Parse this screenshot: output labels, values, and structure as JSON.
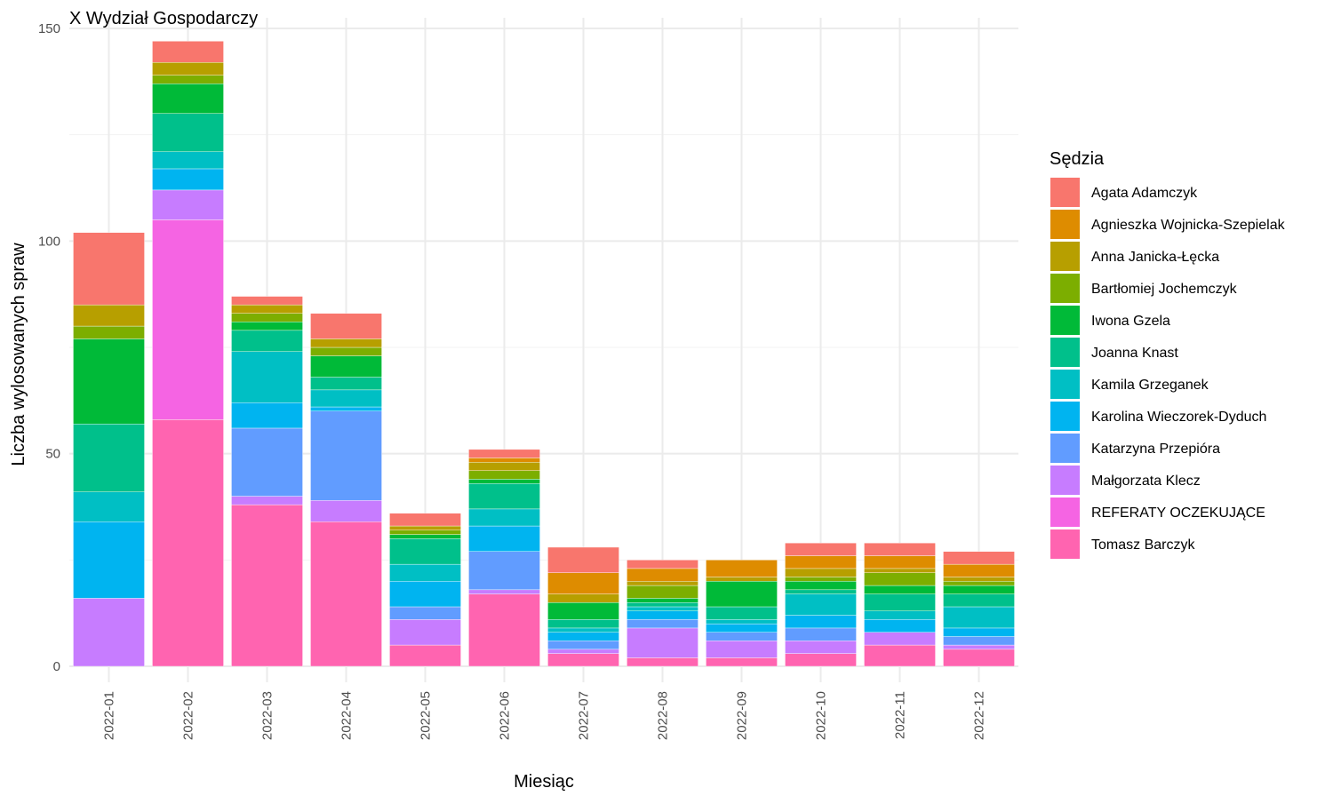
{
  "chart_data": {
    "type": "bar",
    "stacked": true,
    "title": "X Wydział Gospodarczy",
    "xlabel": "Miesiąc",
    "ylabel": "Liczba wylosowanych spraw",
    "ylim": [
      0,
      150
    ],
    "yticks": [
      0,
      50,
      100,
      150
    ],
    "grid": true,
    "legend_title": "Sędzia",
    "legend_position": "right",
    "categories": [
      "2022-01",
      "2022-02",
      "2022-03",
      "2022-04",
      "2022-05",
      "2022-06",
      "2022-07",
      "2022-08",
      "2022-09",
      "2022-10",
      "2022-11",
      "2022-12"
    ],
    "series": [
      {
        "name": "Agata Adamczyk",
        "color": "#F8766D",
        "values": [
          17,
          5,
          2,
          6,
          3,
          2,
          6,
          2,
          0,
          3,
          3,
          3
        ]
      },
      {
        "name": "Agnieszka Wojnicka-Szepielak",
        "color": "#DE8C00",
        "values": [
          0,
          0,
          0,
          0,
          0,
          1,
          5,
          3,
          4,
          3,
          3,
          3
        ]
      },
      {
        "name": "Anna Janicka-Łęcka",
        "color": "#B79F00",
        "values": [
          5,
          3,
          2,
          2,
          1,
          2,
          2,
          1,
          1,
          2,
          1,
          1
        ]
      },
      {
        "name": "Bartłomiej Jochemczyk",
        "color": "#7CAE00",
        "values": [
          3,
          2,
          2,
          2,
          1,
          2,
          0,
          3,
          0,
          1,
          3,
          1
        ]
      },
      {
        "name": "Iwona Gzela",
        "color": "#00BA38",
        "values": [
          20,
          7,
          2,
          5,
          1,
          1,
          4,
          1,
          6,
          2,
          2,
          2
        ]
      },
      {
        "name": "Joanna Knast",
        "color": "#00C08B",
        "values": [
          16,
          9,
          5,
          3,
          6,
          6,
          2,
          1,
          3,
          1,
          4,
          3
        ]
      },
      {
        "name": "Kamila Grzeganek",
        "color": "#00BFC4",
        "values": [
          7,
          4,
          12,
          4,
          4,
          4,
          1,
          1,
          1,
          5,
          2,
          5
        ]
      },
      {
        "name": "Karolina Wieczorek-Dyduch",
        "color": "#00B4F0",
        "values": [
          18,
          5,
          6,
          1,
          6,
          6,
          2,
          2,
          2,
          3,
          3,
          2
        ]
      },
      {
        "name": "Katarzyna Przepióra",
        "color": "#619CFF",
        "values": [
          0,
          0,
          16,
          21,
          3,
          9,
          2,
          2,
          2,
          3,
          0,
          2
        ]
      },
      {
        "name": "Małgorzata Klecz",
        "color": "#C77CFF",
        "values": [
          16,
          7,
          2,
          5,
          6,
          1,
          1,
          7,
          4,
          3,
          3,
          1
        ]
      },
      {
        "name": "REFERATY OCZEKUJĄCE",
        "color": "#F564E3",
        "values": [
          0,
          47,
          0,
          0,
          0,
          0,
          0,
          0,
          0,
          0,
          0,
          0
        ]
      },
      {
        "name": "Tomasz Barczyk",
        "color": "#FF64B0",
        "values": [
          0,
          58,
          38,
          34,
          5,
          17,
          3,
          2,
          2,
          3,
          5,
          4
        ]
      }
    ]
  }
}
